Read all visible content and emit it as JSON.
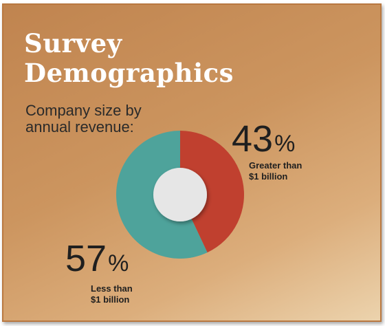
{
  "title_lines": [
    "Survey",
    "Demographics"
  ],
  "subtitle_lines": [
    "Company size by",
    "annual revenue:"
  ],
  "colors": {
    "greater": "#c0402f",
    "less": "#4ea39b",
    "center": "#e6e6e6",
    "title": "#ffffff"
  },
  "chart_data": {
    "type": "pie",
    "title": "Company size by annual revenue:",
    "slices": [
      {
        "value": 43,
        "display_number": "43",
        "unit": "%",
        "label_lines": [
          "Greater than",
          "$1 billion"
        ],
        "color": "#c0402f"
      },
      {
        "value": 57,
        "display_number": "57",
        "unit": "%",
        "label_lines": [
          "Less than",
          "$1 billion"
        ],
        "color": "#4ea39b"
      }
    ]
  }
}
